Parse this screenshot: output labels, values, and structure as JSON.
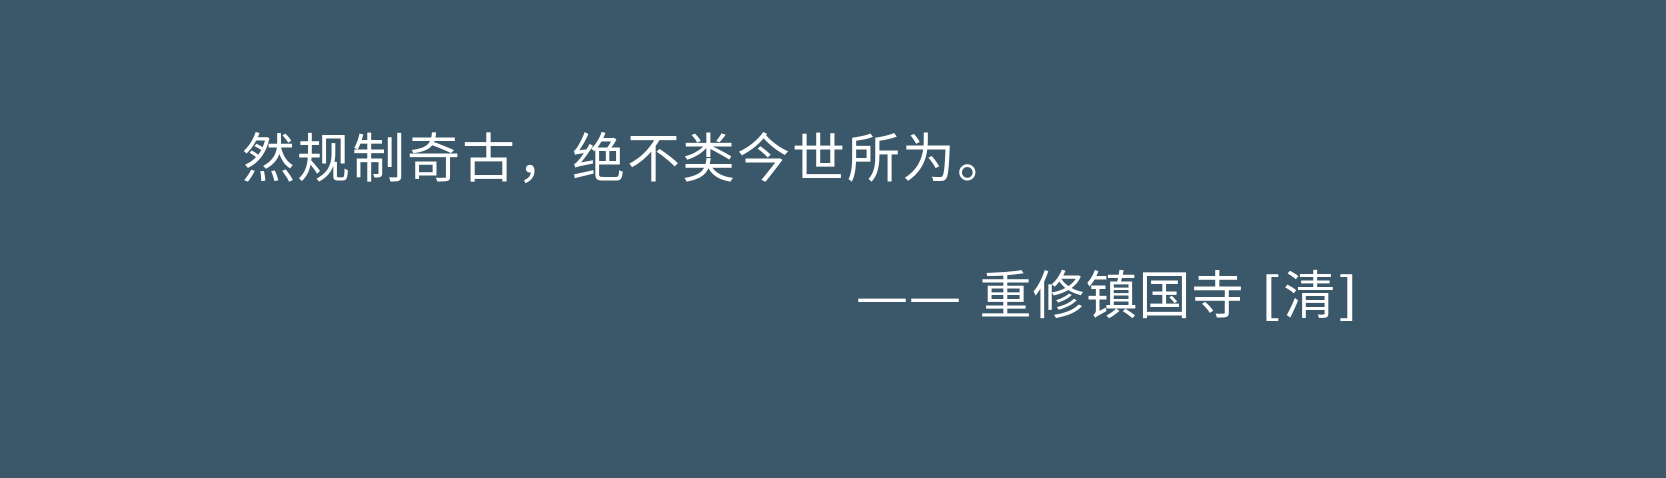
{
  "quote": {
    "text": "然规制奇古，绝不类今世所为。"
  },
  "attribution": {
    "text": "—— 重修镇国寺 [清]"
  },
  "colors": {
    "background": "#3a5869",
    "text": "#ffffff"
  }
}
